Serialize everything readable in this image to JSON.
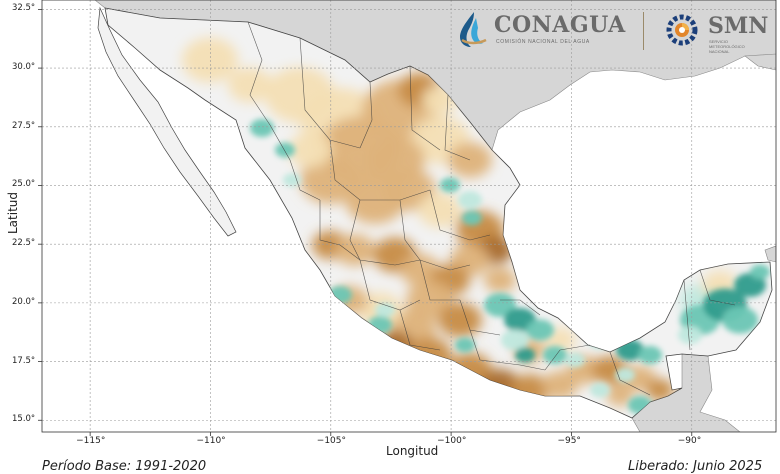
{
  "map": {
    "x_axis_label": "Longitud",
    "y_axis_label": "Latitud",
    "x_ticks": [
      "−115°",
      "−110°",
      "−105°",
      "−100°",
      "−95°",
      "−90°"
    ],
    "y_ticks": [
      "32.5°",
      "30.0°",
      "27.5°",
      "25.0°",
      "22.5°",
      "20.0°",
      "17.5°",
      "15.0°"
    ],
    "grid": true,
    "colors": {
      "ocean": "#ffffff",
      "foreign_land": "#d6d6d6",
      "mexico_base": "#f2f2f2",
      "dry_light": "#f4dfb4",
      "dry_mid": "#deb27a",
      "dry_strong": "#c78b45",
      "dry_extreme": "#a86a2a",
      "wet_light": "#bfe8de",
      "wet_mid": "#6cc6b4",
      "wet_strong": "#2e9c8c"
    }
  },
  "logos": {
    "conagua_name": "CONAGUA",
    "conagua_sub": "COMISIÓN NACIONAL DEL AGUA",
    "smn_name": "SMN",
    "smn_sub": "SERVICIO METEOROLÓGICO NACIONAL",
    "conagua_icon": "water-drop-icon",
    "smn_icon": "gear-icon"
  },
  "footer": {
    "left": "Período Base: 1991-2020",
    "right": "Liberado: Junio 2025"
  }
}
